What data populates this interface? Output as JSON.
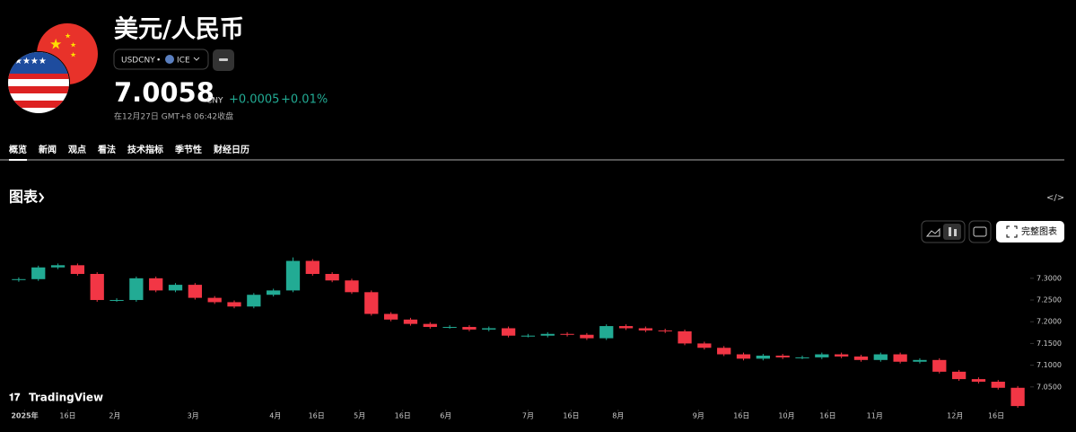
{
  "header": {
    "title": "美元/人民币",
    "symbol": "USDCNY",
    "separator": "•",
    "exchange": "ICE",
    "price": "7.0058",
    "currency": "CNY",
    "change": "+0.0005",
    "change_percent": "+0.01%",
    "status": "在12月27日 GMT+8 06:42收盘"
  },
  "tabs": [
    "概览",
    "新闻",
    "观点",
    "看法",
    "技术指标",
    "季节性",
    "财经日历"
  ],
  "section_title": "图表",
  "full_chart_button": "完整图表",
  "brand": "TradingView",
  "chart_data": {
    "type": "candlestick",
    "categories": [
      null,
      null,
      null,
      null,
      null,
      null,
      null,
      null,
      null,
      null,
      null,
      null,
      null,
      null,
      null,
      null,
      null,
      null,
      null,
      null,
      null,
      null,
      null,
      null,
      null,
      null,
      null,
      null,
      null,
      null,
      null,
      null,
      null,
      null,
      null,
      null,
      null,
      null,
      null,
      null,
      null,
      null,
      null,
      null,
      null,
      null,
      null,
      null,
      null,
      null,
      null,
      null
    ],
    "open": [
      7.296,
      7.298,
      7.325,
      7.33,
      7.31,
      7.25,
      7.25,
      7.3,
      7.272,
      7.285,
      7.255,
      7.245,
      7.235,
      7.262,
      7.272,
      7.34,
      7.31,
      7.295,
      7.268,
      7.218,
      7.205,
      7.195,
      7.188,
      7.188,
      7.182,
      7.185,
      7.168,
      7.168,
      7.172,
      7.17,
      7.162,
      7.19,
      7.185,
      7.18,
      7.178,
      7.15,
      7.14,
      7.125,
      7.115,
      7.122,
      7.118,
      7.118,
      7.125,
      7.12,
      7.112,
      7.125,
      7.108,
      7.112,
      7.085,
      7.068,
      7.062,
      7.048
    ],
    "high": [
      7.302,
      7.329,
      7.334,
      7.334,
      7.314,
      7.254,
      7.304,
      7.304,
      7.289,
      7.289,
      7.259,
      7.249,
      7.266,
      7.276,
      7.348,
      7.344,
      7.314,
      7.299,
      7.272,
      7.222,
      7.209,
      7.199,
      7.192,
      7.192,
      7.189,
      7.189,
      7.172,
      7.176,
      7.176,
      7.174,
      7.194,
      7.194,
      7.189,
      7.184,
      7.182,
      7.154,
      7.144,
      7.129,
      7.126,
      7.126,
      7.122,
      7.129,
      7.129,
      7.124,
      7.129,
      7.129,
      7.116,
      7.116,
      7.089,
      7.072,
      7.066,
      7.052
    ],
    "low": [
      7.292,
      7.294,
      7.321,
      7.306,
      7.246,
      7.246,
      7.246,
      7.268,
      7.268,
      7.251,
      7.241,
      7.231,
      7.231,
      7.258,
      7.268,
      7.306,
      7.291,
      7.264,
      7.214,
      7.201,
      7.191,
      7.184,
      7.184,
      7.178,
      7.178,
      7.164,
      7.164,
      7.164,
      7.166,
      7.158,
      7.158,
      7.181,
      7.176,
      7.174,
      7.146,
      7.136,
      7.121,
      7.111,
      7.111,
      7.114,
      7.114,
      7.114,
      7.116,
      7.108,
      7.108,
      7.104,
      7.104,
      7.081,
      7.064,
      7.058,
      7.044,
      7.002
    ],
    "close": [
      7.298,
      7.325,
      7.33,
      7.31,
      7.25,
      7.25,
      7.3,
      7.272,
      7.285,
      7.255,
      7.245,
      7.235,
      7.262,
      7.272,
      7.34,
      7.31,
      7.295,
      7.268,
      7.218,
      7.205,
      7.195,
      7.188,
      7.188,
      7.182,
      7.185,
      7.168,
      7.168,
      7.172,
      7.17,
      7.162,
      7.19,
      7.185,
      7.18,
      7.178,
      7.15,
      7.14,
      7.125,
      7.115,
      7.122,
      7.118,
      7.118,
      7.125,
      7.12,
      7.112,
      7.125,
      7.108,
      7.112,
      7.085,
      7.068,
      7.062,
      7.048,
      7.006
    ],
    "up_color": "#22ab94",
    "down_color": "#f23645",
    "ylim": [
      7.0,
      7.372
    ],
    "yticks": [
      {
        "value": 7.3,
        "label": "7.3000"
      },
      {
        "value": 7.25,
        "label": "7.2500"
      },
      {
        "value": 7.2,
        "label": "7.2000"
      },
      {
        "value": 7.15,
        "label": "7.1500"
      },
      {
        "value": 7.1,
        "label": "7.1000"
      },
      {
        "value": 7.05,
        "label": "7.0500"
      }
    ],
    "xticks": [
      {
        "value": 0.3,
        "label": "2025年"
      },
      {
        "value": 2.5,
        "label": "16日"
      },
      {
        "value": 4.9,
        "label": "2月"
      },
      {
        "value": 8.9,
        "label": "3月"
      },
      {
        "value": 13.1,
        "label": "4月"
      },
      {
        "value": 15.2,
        "label": "16日"
      },
      {
        "value": 17.4,
        "label": "5月"
      },
      {
        "value": 19.6,
        "label": "16日"
      },
      {
        "value": 21.8,
        "label": "6月"
      },
      {
        "value": 26.0,
        "label": "7月"
      },
      {
        "value": 28.2,
        "label": "16日"
      },
      {
        "value": 30.6,
        "label": "8月"
      },
      {
        "value": 34.7,
        "label": "9月"
      },
      {
        "value": 36.9,
        "label": "16日"
      },
      {
        "value": 39.2,
        "label": "10月"
      },
      {
        "value": 41.3,
        "label": "16日"
      },
      {
        "value": 43.7,
        "label": "11月"
      },
      {
        "value": 47.8,
        "label": "12月"
      },
      {
        "value": 49.9,
        "label": "16日"
      }
    ]
  }
}
